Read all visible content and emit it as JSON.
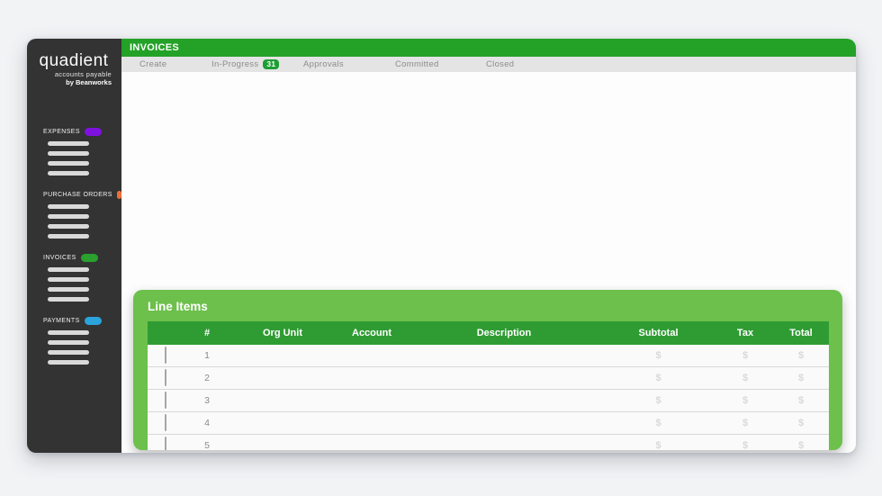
{
  "colors": {
    "brand_green": "#24a127",
    "panel_green": "#6cc04b",
    "table_header_green": "#2f9c33",
    "badge_green": "#1d9e33",
    "sidebar_bg": "#333333"
  },
  "logo": {
    "name": "quadient",
    "subtitle": "accounts payable",
    "byline": "by Beanworks"
  },
  "sidebar": {
    "sections": [
      {
        "label": "EXPENSES",
        "pill_color": "#7f11e0",
        "placeholder_lines": 4
      },
      {
        "label": "PURCHASE ORDERS",
        "pill_color": "#ee7038",
        "placeholder_lines": 4
      },
      {
        "label": "INVOICES",
        "pill_color": "#2aa12e",
        "placeholder_lines": 4
      },
      {
        "label": "PAYMENTS",
        "pill_color": "#2ba3dc",
        "placeholder_lines": 4
      }
    ]
  },
  "header": {
    "title": "INVOICES"
  },
  "tabs": [
    {
      "label": "Create"
    },
    {
      "label": "In-Progress",
      "badge": "31"
    },
    {
      "label": "Approvals"
    },
    {
      "label": "Committed"
    },
    {
      "label": "Closed"
    }
  ],
  "line_items": {
    "title": "Line Items",
    "columns": {
      "num": "#",
      "org_unit": "Org Unit",
      "account": "Account",
      "description": "Description",
      "subtotal": "Subtotal",
      "tax": "Tax",
      "total": "Total"
    },
    "rows": [
      {
        "num": "1",
        "org_unit": "",
        "account": "",
        "description": "",
        "subtotal": "$",
        "tax": "$",
        "total": "$"
      },
      {
        "num": "2",
        "org_unit": "",
        "account": "",
        "description": "",
        "subtotal": "$",
        "tax": "$",
        "total": "$"
      },
      {
        "num": "3",
        "org_unit": "",
        "account": "",
        "description": "",
        "subtotal": "$",
        "tax": "$",
        "total": "$"
      },
      {
        "num": "4",
        "org_unit": "",
        "account": "",
        "description": "",
        "subtotal": "$",
        "tax": "$",
        "total": "$"
      },
      {
        "num": "5",
        "org_unit": "",
        "account": "",
        "description": "",
        "subtotal": "$",
        "tax": "$",
        "total": "$"
      }
    ]
  }
}
